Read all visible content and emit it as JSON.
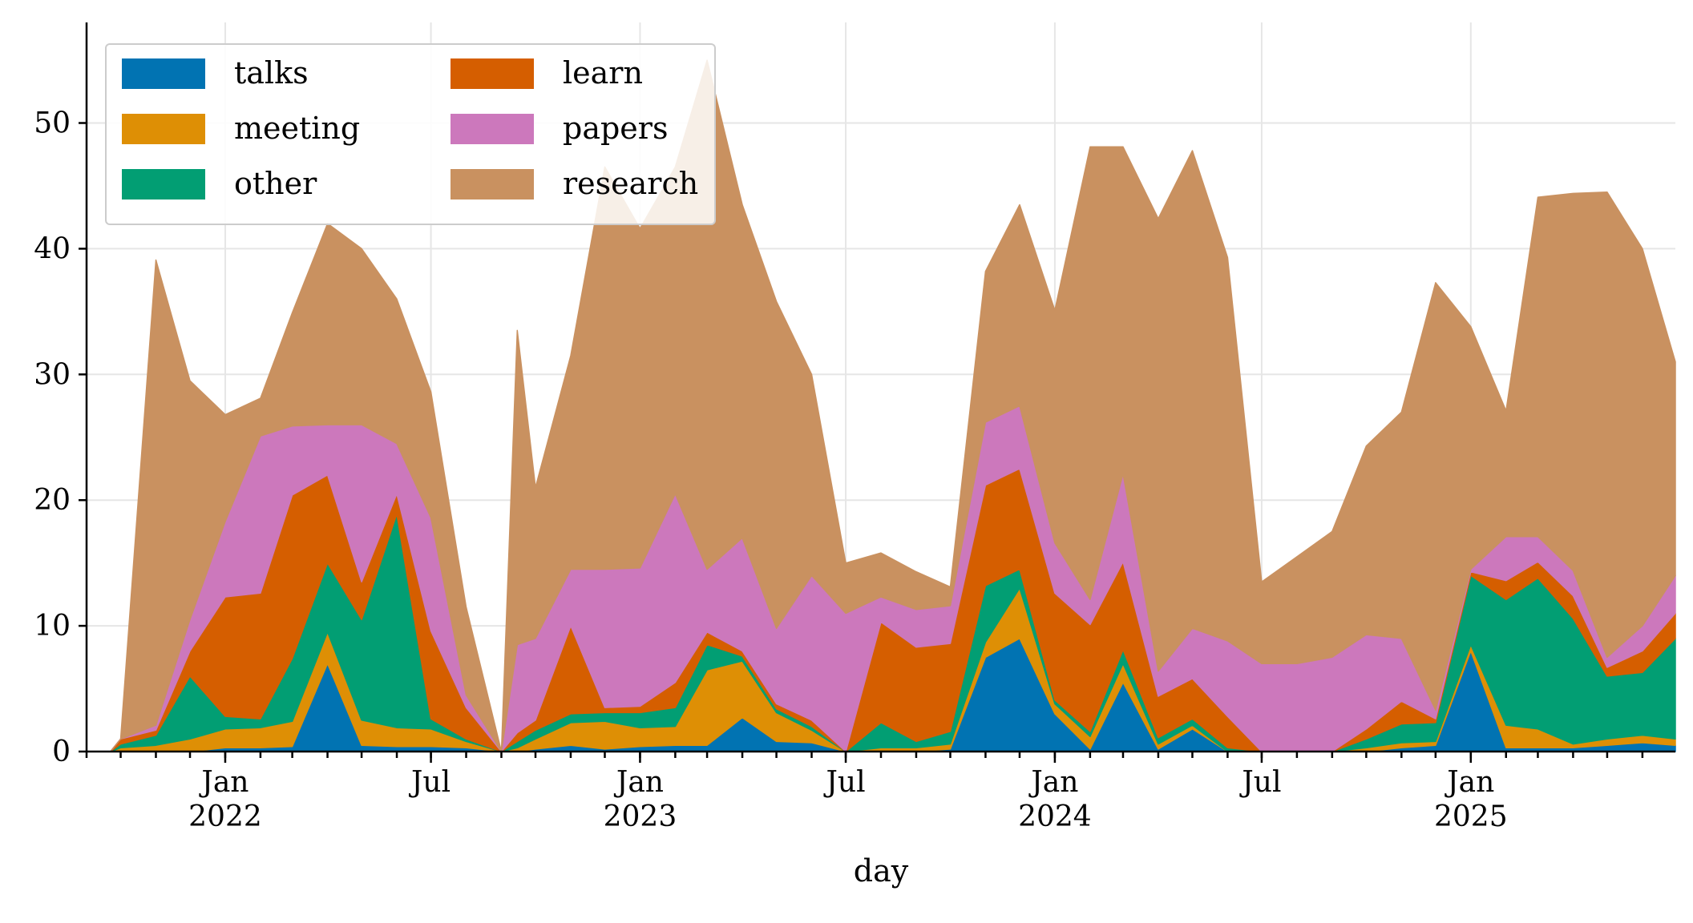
{
  "chart_data": {
    "type": "area",
    "stacked": true,
    "xlabel": "day",
    "ylabel": "",
    "ylim": [
      0,
      58
    ],
    "xlim": [
      "2021-09-01",
      "2025-06-30"
    ],
    "grid": true,
    "legend_position": "top-left",
    "y_ticks": [
      0,
      10,
      20,
      30,
      40,
      50
    ],
    "x_ticks": [
      {
        "date": "2022-01-01",
        "label": "Jan",
        "sub": "2022"
      },
      {
        "date": "2022-07-01",
        "label": "Jul",
        "sub": ""
      },
      {
        "date": "2023-01-01",
        "label": "Jan",
        "sub": "2023"
      },
      {
        "date": "2023-07-01",
        "label": "Jul",
        "sub": ""
      },
      {
        "date": "2024-01-01",
        "label": "Jan",
        "sub": "2024"
      },
      {
        "date": "2024-07-01",
        "label": "Jul",
        "sub": ""
      },
      {
        "date": "2025-01-01",
        "label": "Jan",
        "sub": "2025"
      }
    ],
    "x": [
      "2021-09-01",
      "2021-09-22",
      "2021-10-01",
      "2021-11-01",
      "2021-12-01",
      "2022-01-01",
      "2022-02-01",
      "2022-03-01",
      "2022-04-01",
      "2022-05-01",
      "2022-06-01",
      "2022-07-01",
      "2022-08-01",
      "2022-09-01",
      "2022-09-15",
      "2022-10-01",
      "2022-11-01",
      "2022-12-01",
      "2023-01-01",
      "2023-02-01",
      "2023-03-01",
      "2023-04-01",
      "2023-05-01",
      "2023-06-01",
      "2023-07-01",
      "2023-08-01",
      "2023-09-01",
      "2023-10-01",
      "2023-11-01",
      "2023-12-01",
      "2024-01-01",
      "2024-02-01",
      "2024-03-01",
      "2024-04-01",
      "2024-05-01",
      "2024-06-01",
      "2024-07-01",
      "2024-08-01",
      "2024-09-01",
      "2024-10-01",
      "2024-11-01",
      "2024-12-01",
      "2025-01-01",
      "2025-02-01",
      "2025-03-01",
      "2025-04-01",
      "2025-05-01",
      "2025-06-01",
      "2025-06-30"
    ],
    "series": [
      {
        "name": "talks",
        "color": "#0173b2",
        "values": [
          0,
          0,
          0,
          0,
          0,
          0.3,
          0.3,
          0.4,
          7,
          0.5,
          0.4,
          0.4,
          0.3,
          0,
          0,
          0.2,
          0.5,
          0.2,
          0.4,
          0.5,
          0.5,
          2.7,
          0.8,
          0.7,
          0,
          0,
          0,
          0.2,
          7.5,
          9,
          3,
          0.2,
          5.5,
          0.2,
          1.8,
          0,
          0,
          0,
          0,
          0,
          0.3,
          0.5,
          8,
          0.3,
          0.3,
          0.3,
          0.5,
          0.7,
          0.5
        ]
      },
      {
        "name": "meeting",
        "color": "#de8f05",
        "values": [
          0,
          0,
          0.3,
          0.5,
          1,
          1.5,
          1.6,
          2,
          2.5,
          2,
          1.5,
          1.4,
          0.5,
          0,
          0.3,
          0.8,
          1.8,
          2.2,
          1.5,
          1.5,
          6,
          4.5,
          2.3,
          1,
          0,
          0.3,
          0.3,
          0.4,
          1.2,
          4,
          0.8,
          1,
          1.5,
          0.4,
          0.3,
          0,
          0,
          0,
          0,
          0.3,
          0.4,
          0.3,
          0.5,
          1.8,
          1.5,
          0.3,
          0.5,
          0.6,
          0.5
        ]
      },
      {
        "name": "other",
        "color": "#029e73",
        "values": [
          0,
          0,
          0.3,
          0.8,
          5,
          1,
          0.7,
          5,
          5.5,
          8,
          17,
          0.8,
          0.2,
          0,
          0.5,
          0.7,
          0.7,
          0.7,
          1.2,
          1.5,
          2,
          0.4,
          0.3,
          0.3,
          0,
          2,
          0.5,
          1,
          4.5,
          1.5,
          0.3,
          0.4,
          1.1,
          0.5,
          0.5,
          0.3,
          0,
          0,
          0,
          0.7,
          1.5,
          1.5,
          5.5,
          10,
          12,
          10,
          5,
          5,
          8
        ]
      },
      {
        "name": "learn",
        "color": "#d55e00",
        "values": [
          0,
          0,
          0.4,
          0.4,
          2,
          9.5,
          10,
          13,
          7,
          3,
          1.6,
          7,
          2.5,
          0,
          0.7,
          0.8,
          7,
          0.4,
          0.5,
          2,
          1,
          0.4,
          0.4,
          0.5,
          0,
          8,
          7.5,
          7,
          8,
          8,
          8.5,
          8.5,
          7,
          3.3,
          3.2,
          2.5,
          0,
          0,
          0,
          0.8,
          1.8,
          0.3,
          0.3,
          1.5,
          1.3,
          1.8,
          0.7,
          1.7,
          2
        ]
      },
      {
        "name": "papers",
        "color": "#cc78bc",
        "values": [
          0,
          0,
          0,
          0.4,
          2.5,
          6,
          12.5,
          5.5,
          4,
          12.5,
          4,
          9,
          1,
          0,
          7,
          6.5,
          4.5,
          11,
          11,
          15,
          5,
          9,
          6,
          11.5,
          11,
          2,
          3,
          3,
          5,
          5,
          4,
          2,
          7,
          2,
          4,
          6,
          7,
          7,
          7.5,
          7.5,
          5,
          0.7,
          0.2,
          3.5,
          2,
          2,
          0.8,
          2,
          3
        ]
      },
      {
        "name": "research",
        "color": "#c99160",
        "values": [
          0,
          0,
          0,
          37,
          19,
          8.5,
          3,
          9,
          16,
          14,
          11.5,
          10,
          7,
          0,
          25,
          12,
          17,
          32,
          27,
          26,
          40.5,
          26.5,
          26,
          16,
          4,
          3.5,
          3,
          1.5,
          12,
          16,
          18.5,
          36,
          26,
          36,
          38,
          30.5,
          6.5,
          8.5,
          10,
          15,
          18,
          34,
          19.3,
          10,
          27,
          30,
          37,
          30,
          17
        ]
      }
    ]
  }
}
